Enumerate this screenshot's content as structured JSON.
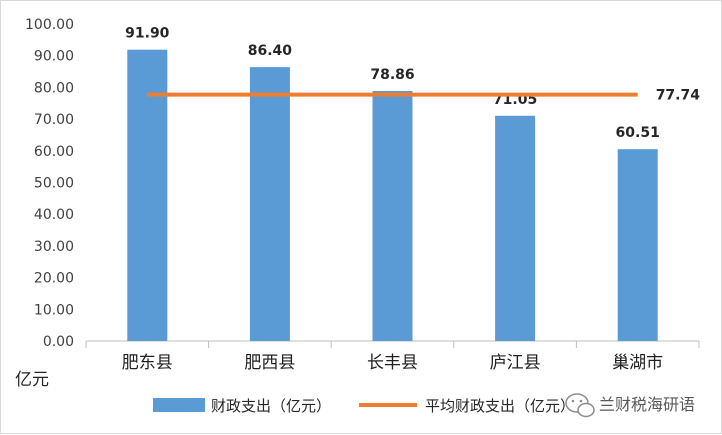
{
  "chart_data": {
    "type": "bar",
    "categories": [
      "肥东县",
      "肥西县",
      "长丰县",
      "庐江县",
      "巢湖市"
    ],
    "series": [
      {
        "name": "财政支出（亿元）",
        "type": "bar",
        "values": [
          91.9,
          86.4,
          78.86,
          71.05,
          60.51
        ],
        "color": "#5b9bd5"
      },
      {
        "name": "平均财政支出（亿元）",
        "type": "line",
        "value": 77.74,
        "color": "#ed7d31"
      }
    ],
    "data_labels": [
      "91.90",
      "86.40",
      "78.86",
      "71.05",
      "60.51"
    ],
    "average_label": "77.74",
    "ylim": [
      0,
      100
    ],
    "yticks": [
      "0.00",
      "10.00",
      "20.00",
      "30.00",
      "40.00",
      "50.00",
      "60.00",
      "70.00",
      "80.00",
      "90.00",
      "100.00"
    ],
    "ylabel": "亿元",
    "grid": false,
    "legend_position": "bottom"
  },
  "legend": {
    "bar_label": "财政支出（亿元）",
    "line_label": "平均财政支出（亿元）"
  },
  "watermark": {
    "text": "兰财税海研语",
    "icon": "wechat-icon"
  }
}
